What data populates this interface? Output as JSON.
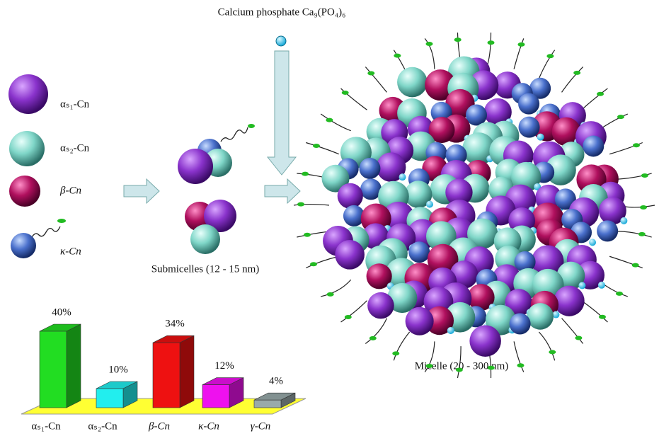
{
  "title": "Calcium phosphate Ca₉(PO₄)₆",
  "legend": [
    "αₛ₁-Cn",
    "αₛ₂-Cn",
    "β-Cn",
    "κ-Cn"
  ],
  "submicelle_label": "Submicelles (12 - 15 nm)",
  "micelle_label": "Micelle (20 - 300 nm)",
  "chart_data": {
    "type": "bar3d",
    "categories": [
      "αₛ₁-Cn",
      "αₛ₂-Cn",
      "β-Cn",
      "κ-Cn",
      "γ-Cn"
    ],
    "values": [
      40,
      10,
      34,
      12,
      4
    ],
    "value_labels": [
      "40%",
      "10%",
      "34%",
      "12%",
      "4%"
    ],
    "colors": [
      "#22dd22",
      "#22eeee",
      "#ee1111",
      "#ee11ee",
      "#99aaaa"
    ]
  }
}
